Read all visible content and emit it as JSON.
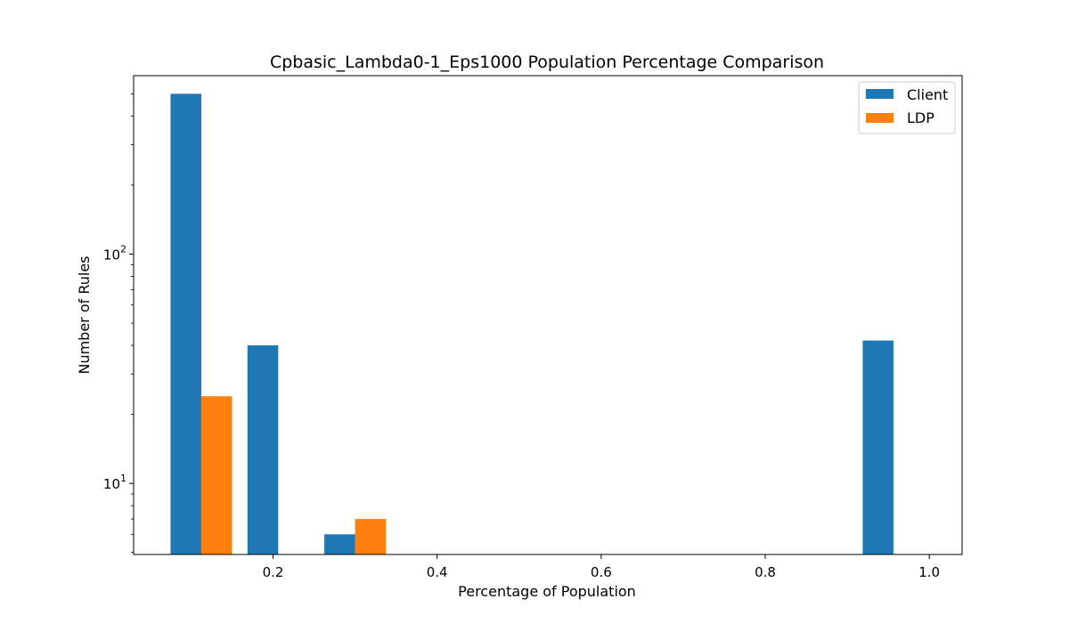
{
  "chart_data": {
    "type": "bar",
    "title": "Cpbasic_Lambda0-1_Eps1000 Population Percentage Comparison",
    "xlabel": "Percentage of Population",
    "ylabel": "Number of Rules",
    "yscale": "log",
    "xlim": [
      0.03,
      1.04
    ],
    "ylim": [
      4.9,
      600
    ],
    "xticks": [
      "0.2",
      "0.4",
      "0.6",
      "0.8",
      "1.0"
    ],
    "xtick_values": [
      0.2,
      0.4,
      0.6,
      0.8,
      1.0
    ],
    "ytick_labels": [
      {
        "base": "10",
        "exp": "1",
        "value": 10
      },
      {
        "base": "10",
        "exp": "2",
        "value": 100
      }
    ],
    "legend_position": "top-right",
    "grid": false,
    "series": [
      {
        "name": "Client",
        "color": "#1f77b4",
        "points": [
          {
            "x": 0.075,
            "x2": 0.1125,
            "y": 500
          },
          {
            "x": 0.1688,
            "x2": 0.2063,
            "y": 40
          },
          {
            "x": 0.2625,
            "x2": 0.3,
            "y": 6
          },
          {
            "x": 0.9188,
            "x2": 0.9563,
            "y": 42
          }
        ]
      },
      {
        "name": "LDP",
        "color": "#ff7f0e",
        "points": [
          {
            "x": 0.1125,
            "x2": 0.15,
            "y": 24
          },
          {
            "x": 0.3,
            "x2": 0.3375,
            "y": 7
          }
        ]
      }
    ]
  }
}
